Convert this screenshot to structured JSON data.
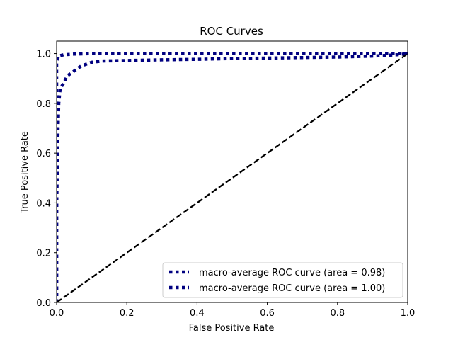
{
  "chart_data": {
    "type": "line",
    "title": "ROC Curves",
    "xlabel": "False Positive Rate",
    "ylabel": "True Positive Rate",
    "xlim": [
      0.0,
      1.0
    ],
    "ylim": [
      0.0,
      1.05
    ],
    "xticks": [
      "0.0",
      "0.2",
      "0.4",
      "0.6",
      "0.8",
      "1.0"
    ],
    "yticks": [
      "0.0",
      "0.2",
      "0.4",
      "0.6",
      "0.8",
      "1.0"
    ],
    "grid": false,
    "legend_position": "bottom-right",
    "series": [
      {
        "name": "macro-average ROC curve (area = 0.98)",
        "color": "#000080",
        "style": "dotted",
        "x": [
          0.0,
          0.0,
          0.002,
          0.004,
          0.006,
          0.01,
          0.02,
          0.03,
          0.05,
          0.07,
          0.1,
          0.13,
          0.2,
          0.3,
          0.4,
          0.5,
          0.6,
          0.7,
          0.8,
          0.9,
          0.97,
          1.0
        ],
        "y": [
          0.0,
          0.37,
          0.55,
          0.7,
          0.8,
          0.86,
          0.88,
          0.91,
          0.93,
          0.95,
          0.965,
          0.97,
          0.972,
          0.975,
          0.977,
          0.98,
          0.982,
          0.984,
          0.986,
          0.99,
          0.995,
          1.0
        ]
      },
      {
        "name": "macro-average ROC curve (area = 1.00)",
        "color": "#000080",
        "style": "dotted",
        "x": [
          0.0,
          0.0,
          0.005,
          0.02,
          0.05,
          0.1,
          0.2,
          0.3,
          0.4,
          0.5,
          0.6,
          0.7,
          0.8,
          0.9,
          1.0
        ],
        "y": [
          0.0,
          0.96,
          0.99,
          0.995,
          0.998,
          1.0,
          1.0,
          1.0,
          1.0,
          1.0,
          1.0,
          1.0,
          1.0,
          1.0,
          1.0
        ]
      },
      {
        "color": "#000000",
        "style": "dashed",
        "x": [
          0.0,
          1.0
        ],
        "y": [
          0.0,
          1.0
        ]
      }
    ]
  }
}
